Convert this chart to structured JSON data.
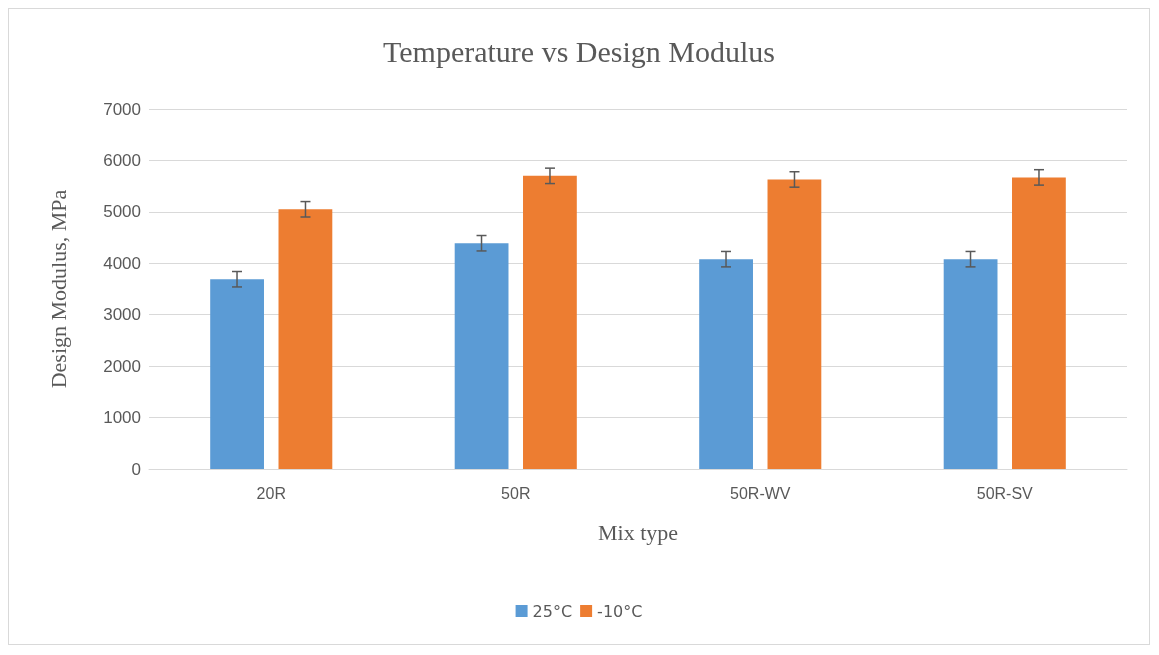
{
  "chart_data": {
    "type": "bar",
    "title": "Temperature vs Design Modulus",
    "xlabel": "Mix type",
    "ylabel": "Design Modulus, MPa",
    "categories": [
      "20R",
      "50R",
      "50R-WV",
      "50R-SV"
    ],
    "series": [
      {
        "name": "25°C",
        "color": "#5b9bd5",
        "values": [
          3690,
          4390,
          4080,
          4080
        ],
        "errors": [
          150,
          150,
          150,
          150
        ]
      },
      {
        "name": "-10°C",
        "color": "#ed7d31",
        "values": [
          5050,
          5700,
          5630,
          5670
        ],
        "errors": [
          150,
          150,
          150,
          150
        ]
      }
    ],
    "ylim": [
      0,
      7000
    ],
    "yticks": [
      0,
      1000,
      2000,
      3000,
      4000,
      5000,
      6000,
      7000
    ],
    "grid": "y",
    "legend": "bottom"
  }
}
